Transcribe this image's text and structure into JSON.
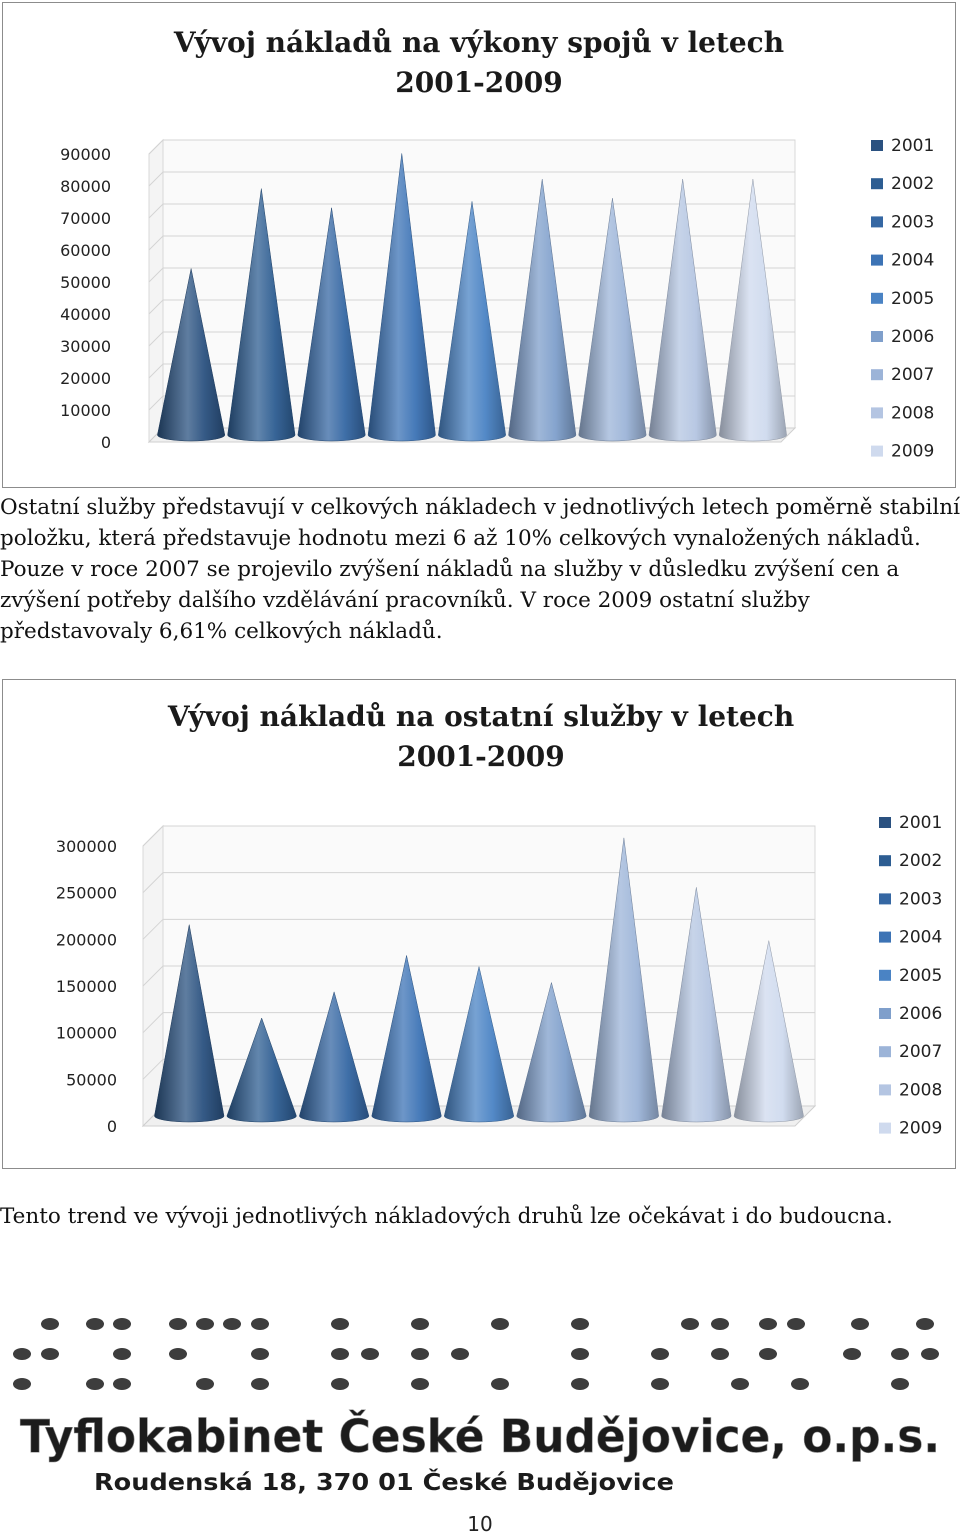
{
  "page": {
    "paragraph1": "Ostatní služby představují v celkových nákladech v jednotlivých letech poměrně stabilní položku, která představuje hodnotu mezi 6 až 10% celkových vynaložených nákladů. Pouze v roce 2007 se projevilo zvýšení nákladů na služby v důsledku zvýšení cen a zvýšení potřeby dalšího vzdělávání pracovníků. V roce 2009 ostatní služby představovaly 6,61% celkových nákladů.",
    "paragraph2": "Tento trend ve vývoji jednotlivých nákladových druhů lze očekávat i do budoucna.",
    "page_number": "10"
  },
  "footer_logo": {
    "org_name": "Tyflokabinet České Budějovice, o.p.s.",
    "address": "Roudenská 18, 370 01 České Budějovice"
  },
  "chart_data": [
    {
      "type": "bar",
      "style": "3d-cone",
      "title": "Vývoj nákladů na výkony spojů v letech 2001-2009",
      "title_lines": [
        "Vývoj nákladů na výkony spojů v letech",
        "2001-2009"
      ],
      "categories": [
        "2001",
        "2002",
        "2003",
        "2004",
        "2005",
        "2006",
        "2007",
        "2008",
        "2009"
      ],
      "series": [
        {
          "name": "2001",
          "value": 52000
        },
        {
          "name": "2002",
          "value": 77000
        },
        {
          "name": "2003",
          "value": 71000
        },
        {
          "name": "2004",
          "value": 88000
        },
        {
          "name": "2005",
          "value": 73000
        },
        {
          "name": "2006",
          "value": 80000
        },
        {
          "name": "2007",
          "value": 74000
        },
        {
          "name": "2008",
          "value": 80000
        },
        {
          "name": "2009",
          "value": 80000
        }
      ],
      "yticks": [
        "0",
        "10000",
        "20000",
        "30000",
        "40000",
        "50000",
        "60000",
        "70000",
        "80000",
        "90000"
      ],
      "ylim": [
        0,
        90000
      ],
      "grid": true,
      "legend": "right",
      "colors": [
        "#2a5180",
        "#2d5d92",
        "#3567a3",
        "#3c73b5",
        "#4a83c4",
        "#7f9fcb",
        "#9cb4d8",
        "#b4c5e2",
        "#cfdaee"
      ]
    },
    {
      "type": "bar",
      "style": "3d-cone",
      "title": "Vývoj nákladů na ostatní služby v letech 2001-2009",
      "title_lines": [
        "Vývoj nákladů na ostatní služby v letech",
        "2001-2009"
      ],
      "categories": [
        "2001",
        "2002",
        "2003",
        "2004",
        "2005",
        "2006",
        "2007",
        "2008",
        "2009"
      ],
      "series": [
        {
          "name": "2001",
          "value": 205000
        },
        {
          "name": "2002",
          "value": 105000
        },
        {
          "name": "2003",
          "value": 133000
        },
        {
          "name": "2004",
          "value": 172000
        },
        {
          "name": "2005",
          "value": 160000
        },
        {
          "name": "2006",
          "value": 143000
        },
        {
          "name": "2007",
          "value": 298000
        },
        {
          "name": "2008",
          "value": 245000
        },
        {
          "name": "2009",
          "value": 188000
        }
      ],
      "yticks": [
        "0",
        "50000",
        "100000",
        "150000",
        "200000",
        "250000",
        "300000"
      ],
      "ylim": [
        0,
        300000
      ],
      "grid": true,
      "legend": "right",
      "colors": [
        "#2a5180",
        "#2d5d92",
        "#3567a3",
        "#3c73b5",
        "#4a83c4",
        "#7f9fcb",
        "#9cb4d8",
        "#b4c5e2",
        "#cfdaee"
      ]
    }
  ]
}
